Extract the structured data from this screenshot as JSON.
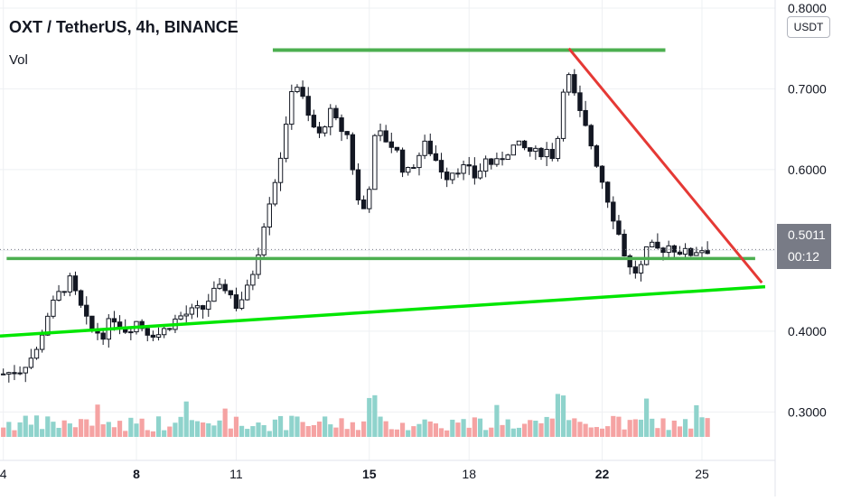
{
  "header": {
    "title": "OXT / TetherUS, 4h, BINANCE",
    "volume_label": "Vol",
    "currency": "USDT"
  },
  "last_price": {
    "value": "0.5011",
    "countdown": "00:12"
  },
  "colors": {
    "up": "#26a69a",
    "down": "#ef5350",
    "candle": "#131722",
    "vol_up": "#8fd3cc",
    "vol_down": "#f5a3a3",
    "resistance": "#4caf50",
    "support_trend": "#00e600",
    "down_trend": "#e53935"
  },
  "chart_data": {
    "type": "candlestick",
    "title": "OXT / TetherUS, 4h, BINANCE",
    "y_axis": {
      "ticks": [
        "0.8000",
        "0.7000",
        "0.6000",
        "0.5000",
        "0.4000",
        "0.3000"
      ],
      "tick_values": [
        0.8,
        0.7,
        0.6,
        0.5,
        0.4,
        0.3
      ],
      "range": [
        0.24,
        0.81
      ]
    },
    "x_axis": {
      "ticks": [
        {
          "label": "4",
          "day": 4,
          "bold": false
        },
        {
          "label": "8",
          "day": 8,
          "bold": true
        },
        {
          "label": "11",
          "day": 11,
          "bold": false
        },
        {
          "label": "15",
          "day": 15,
          "bold": true
        },
        {
          "label": "18",
          "day": 18,
          "bold": false
        },
        {
          "label": "22",
          "day": 22,
          "bold": true
        },
        {
          "label": "25",
          "day": 25,
          "bold": false
        }
      ],
      "range": [
        3.9,
        27.2
      ]
    },
    "price_series_close": [
      [
        4.0,
        0.347
      ],
      [
        4.5,
        0.352
      ],
      [
        5.0,
        0.375
      ],
      [
        5.3,
        0.418
      ],
      [
        5.7,
        0.448
      ],
      [
        6.0,
        0.462
      ],
      [
        6.3,
        0.432
      ],
      [
        6.6,
        0.402
      ],
      [
        7.0,
        0.397
      ],
      [
        7.3,
        0.418
      ],
      [
        7.7,
        0.401
      ],
      [
        8.0,
        0.412
      ],
      [
        8.3,
        0.4
      ],
      [
        8.7,
        0.396
      ],
      [
        9.0,
        0.408
      ],
      [
        9.3,
        0.418
      ],
      [
        9.7,
        0.424
      ],
      [
        10.0,
        0.428
      ],
      [
        10.3,
        0.447
      ],
      [
        10.7,
        0.455
      ],
      [
        11.0,
        0.432
      ],
      [
        11.3,
        0.447
      ],
      [
        11.6,
        0.487
      ],
      [
        11.9,
        0.548
      ],
      [
        12.2,
        0.592
      ],
      [
        12.5,
        0.65
      ],
      [
        12.7,
        0.712
      ],
      [
        12.9,
        0.7
      ],
      [
        13.2,
        0.66
      ],
      [
        13.5,
        0.642
      ],
      [
        13.8,
        0.672
      ],
      [
        14.1,
        0.652
      ],
      [
        14.4,
        0.64
      ],
      [
        14.6,
        0.565
      ],
      [
        14.9,
        0.548
      ],
      [
        15.2,
        0.648
      ],
      [
        15.5,
        0.637
      ],
      [
        15.8,
        0.625
      ],
      [
        16.1,
        0.592
      ],
      [
        16.4,
        0.612
      ],
      [
        16.7,
        0.632
      ],
      [
        17.0,
        0.612
      ],
      [
        17.3,
        0.592
      ],
      [
        17.6,
        0.602
      ],
      [
        17.9,
        0.602
      ],
      [
        18.2,
        0.59
      ],
      [
        18.5,
        0.612
      ],
      [
        18.8,
        0.605
      ],
      [
        19.1,
        0.622
      ],
      [
        19.4,
        0.63
      ],
      [
        19.7,
        0.625
      ],
      [
        20.0,
        0.62
      ],
      [
        20.3,
        0.625
      ],
      [
        20.6,
        0.615
      ],
      [
        20.9,
        0.728
      ],
      [
        21.1,
        0.7
      ],
      [
        21.3,
        0.672
      ],
      [
        21.6,
        0.64
      ],
      [
        21.9,
        0.6
      ],
      [
        22.2,
        0.56
      ],
      [
        22.5,
        0.52
      ],
      [
        22.8,
        0.478
      ],
      [
        23.1,
        0.472
      ],
      [
        23.4,
        0.505
      ],
      [
        23.7,
        0.5
      ],
      [
        24.0,
        0.506
      ],
      [
        24.3,
        0.5
      ],
      [
        24.6,
        0.495
      ],
      [
        24.9,
        0.502
      ],
      [
        25.2,
        0.501
      ]
    ],
    "annotations": [
      {
        "type": "resistance",
        "from": [
          12.1,
          0.748
        ],
        "to": [
          23.9,
          0.748
        ]
      },
      {
        "type": "horizontal",
        "from": [
          4.1,
          0.49
        ],
        "to": [
          26.6,
          0.49
        ]
      },
      {
        "type": "support_trend",
        "from": [
          3.9,
          0.394
        ],
        "to": [
          26.9,
          0.455
        ]
      },
      {
        "type": "down_trend",
        "from": [
          21.0,
          0.75
        ],
        "to": [
          26.8,
          0.46
        ]
      }
    ]
  }
}
